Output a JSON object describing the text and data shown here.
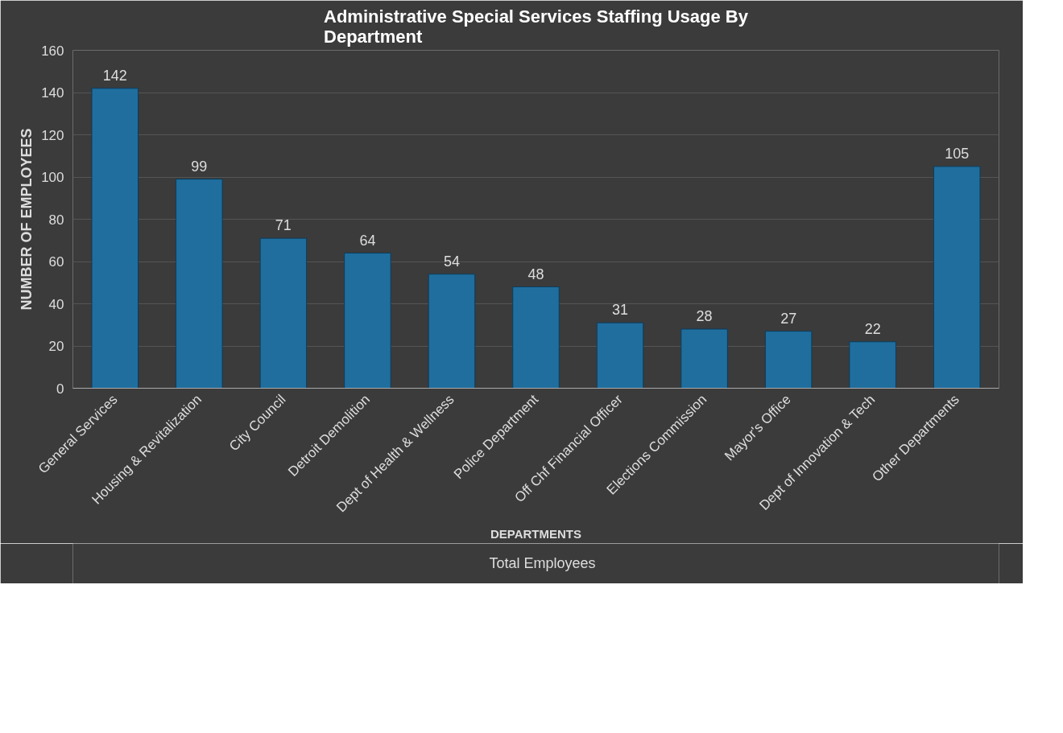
{
  "chart_data": {
    "type": "bar",
    "title": "Administrative Special Services Staffing Usage By Department",
    "xlabel": "DEPARTMENTS",
    "ylabel": "NUMBER OF EMPLOYEES",
    "categories": [
      "General Services",
      "Housing & Revitalization",
      "City Council",
      "Detroit Demolition",
      "Dept of Health & Wellness",
      "Police Department",
      "Off Chf Financial Officer",
      "Elections Commission",
      "Mayor's Office",
      "Dept of Innovation & Tech",
      "Other Departments"
    ],
    "series": [
      {
        "name": "Total Employees",
        "color": "#1f6e9e",
        "values": [
          142,
          99,
          71,
          64,
          54,
          48,
          31,
          28,
          27,
          22,
          105
        ]
      }
    ],
    "ylim": [
      0,
      160
    ],
    "yticks": [
      0,
      20,
      40,
      60,
      80,
      100,
      120,
      140,
      160
    ],
    "grid": "y",
    "legend": "bottom",
    "data_labels": true
  }
}
